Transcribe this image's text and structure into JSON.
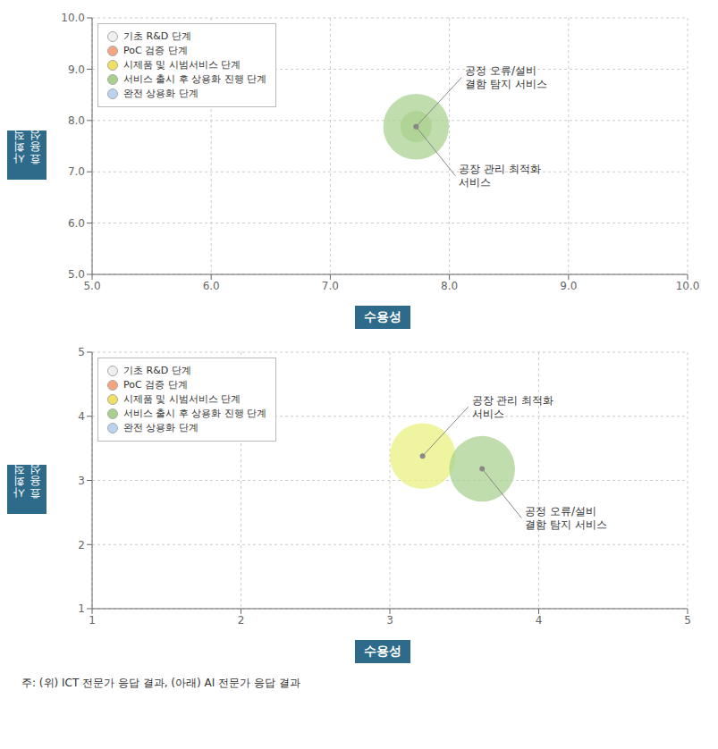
{
  "chart_data": [
    {
      "type": "scatter",
      "xlabel": "수용성",
      "ylabel": "사회적\n효용성",
      "xlim": [
        5.0,
        10.0
      ],
      "ylim": [
        5.0,
        10.0
      ],
      "xticks": [
        {
          "value": 5.0,
          "label": "5.0"
        },
        {
          "value": 6.0,
          "label": "6.0"
        },
        {
          "value": 7.0,
          "label": "7.0"
        },
        {
          "value": 8.0,
          "label": "8.0"
        },
        {
          "value": 9.0,
          "label": "9.0"
        },
        {
          "value": 10.0,
          "label": "10.0"
        }
      ],
      "yticks": [
        {
          "value": 5.0,
          "label": "5.0"
        },
        {
          "value": 6.0,
          "label": "6.0"
        },
        {
          "value": 7.0,
          "label": "7.0"
        },
        {
          "value": 8.0,
          "label": "8.0"
        },
        {
          "value": 9.0,
          "label": "9.0"
        },
        {
          "value": 10.0,
          "label": "10.0"
        }
      ],
      "grid": true,
      "legend": "upper left",
      "x": [
        7.72,
        7.72
      ],
      "values": [
        7.88,
        7.88
      ],
      "sizes": [
        2200,
        500
      ],
      "colors": [
        "#a8d08d",
        "#a8d08d"
      ],
      "annotations": [
        "공정 오류/설비\n결함 탐지 서비스",
        "공장 관리 최적화\n서비스"
      ],
      "legend_items": [
        {
          "name": "기초 R&D 단계",
          "color": "#f0f0f0"
        },
        {
          "name": "PoC 검증 단계",
          "color": "#f4a580"
        },
        {
          "name": "시제품 및 시범서비스 단계",
          "color": "#f0e060"
        },
        {
          "name": "서비스 출시 후 상용화 진행 단계",
          "color": "#a8d08d"
        },
        {
          "name": "완전 상용화 단계",
          "color": "#b8d4f0"
        }
      ]
    },
    {
      "type": "scatter",
      "xlabel": "수용성",
      "ylabel": "사회적\n효용성",
      "xlim": [
        1.0,
        5.0
      ],
      "ylim": [
        1.0,
        5.0
      ],
      "xticks": [
        1,
        2,
        3,
        4,
        5
      ],
      "yticks": [
        1,
        2,
        3,
        4,
        5
      ],
      "grid": true,
      "legend": "upper left",
      "x": [
        3.22,
        3.62
      ],
      "values": [
        3.38,
        3.18
      ],
      "sizes": [
        2200,
        2200
      ],
      "colors": [
        "#e8f07a",
        "#a8d08d"
      ],
      "annotations": [
        "공장 관리 최적화\n서비스",
        "공정 오류/설비\n결함 탐지 서비스"
      ],
      "legend_items": [
        {
          "name": "기초 R&D 단계",
          "color": "#f0f0f0"
        },
        {
          "name": "PoC 검증 단계",
          "color": "#f4a580"
        },
        {
          "name": "시제품 및 시범서비스 단계",
          "color": "#f0e060"
        },
        {
          "name": "서비스 출시 후 상용화 진행 단계",
          "color": "#a8d08d"
        },
        {
          "name": "완전 상용화 단계",
          "color": "#b8d4f0"
        }
      ]
    }
  ],
  "footer": "주: (위) ICT 전문가 응답 결과, (아래) AI 전문가 응답 결과"
}
